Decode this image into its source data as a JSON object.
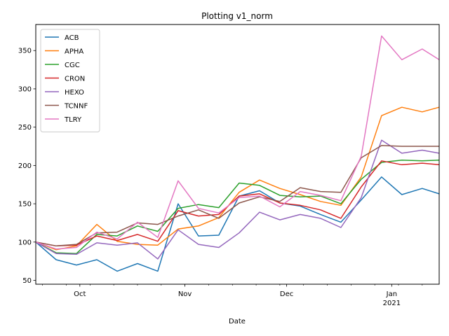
{
  "chart_data": {
    "type": "line",
    "title": "Plotting v1_norm",
    "xlabel": "Date",
    "ylabel": "",
    "x_tick_labels": [
      {
        "date": "2020-10-01",
        "lines": [
          "Oct"
        ]
      },
      {
        "date": "2020-11-01",
        "lines": [
          "Nov"
        ]
      },
      {
        "date": "2020-12-01",
        "lines": [
          "Dec"
        ]
      },
      {
        "date": "2021-01-01",
        "lines": [
          "Jan",
          "2021"
        ]
      }
    ],
    "y_ticks": [
      50,
      100,
      150,
      200,
      250,
      300,
      350
    ],
    "xlim": [
      "2020-09-18",
      "2021-01-15"
    ],
    "ylim": [
      45,
      384
    ],
    "legend_position": "upper left",
    "grid": false,
    "x": [
      "2020-09-18",
      "2020-09-24",
      "2020-09-30",
      "2020-10-06",
      "2020-10-12",
      "2020-10-18",
      "2020-10-24",
      "2020-10-30",
      "2020-11-05",
      "2020-11-11",
      "2020-11-17",
      "2020-11-23",
      "2020-11-29",
      "2020-12-05",
      "2020-12-11",
      "2020-12-17",
      "2020-12-23",
      "2020-12-29",
      "2021-01-04",
      "2021-01-10",
      "2021-01-15"
    ],
    "series": [
      {
        "name": "ACB",
        "color": "#1f77b4",
        "values": [
          100,
          77,
          70,
          77,
          62,
          72,
          62,
          150,
          108,
          109,
          160,
          167,
          151,
          147,
          136,
          126,
          155,
          185,
          162,
          170,
          163
        ]
      },
      {
        "name": "APHA",
        "color": "#ff7f0e",
        "values": [
          100,
          90,
          95,
          123,
          101,
          97,
          96,
          117,
          121,
          132,
          165,
          181,
          170,
          162,
          153,
          148,
          185,
          265,
          276,
          270,
          276
        ]
      },
      {
        "name": "CGC",
        "color": "#2ca02c",
        "values": [
          100,
          86,
          85,
          110,
          108,
          121,
          114,
          144,
          149,
          145,
          177,
          174,
          161,
          159,
          160,
          150,
          182,
          204,
          207,
          206,
          207
        ]
      },
      {
        "name": "CRON",
        "color": "#d62728",
        "values": [
          100,
          95,
          96,
          108,
          102,
          110,
          101,
          141,
          134,
          136,
          160,
          163,
          151,
          148,
          142,
          131,
          172,
          206,
          201,
          203,
          201
        ]
      },
      {
        "name": "HEXO",
        "color": "#9467bd",
        "values": [
          100,
          85,
          84,
          99,
          96,
          99,
          78,
          116,
          97,
          93,
          112,
          139,
          129,
          136,
          131,
          119,
          158,
          233,
          216,
          220,
          216
        ]
      },
      {
        "name": "TCNNF",
        "color": "#8c564b",
        "values": [
          100,
          95,
          97,
          112,
          113,
          125,
          123,
          134,
          142,
          131,
          151,
          159,
          153,
          171,
          166,
          165,
          210,
          226,
          225,
          225,
          225
        ]
      },
      {
        "name": "TLRY",
        "color": "#e377c2",
        "values": [
          100,
          91,
          93,
          113,
          104,
          126,
          106,
          180,
          144,
          138,
          158,
          160,
          146,
          166,
          161,
          154,
          212,
          369,
          338,
          352,
          338
        ]
      }
    ]
  }
}
